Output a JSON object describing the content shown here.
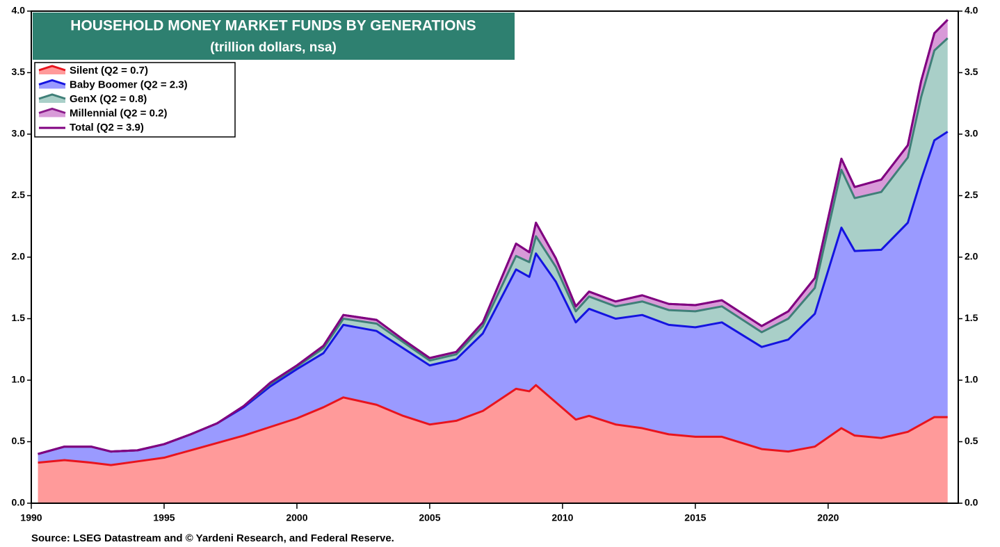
{
  "chart_data": {
    "type": "stacked_area",
    "title": "HOUSEHOLD MONEY MARKET FUNDS BY GENERATIONS",
    "subtitle": "(trillion dollars, nsa)",
    "source": "Source: LSEG Datastream and © Yardeni Research, and Federal Reserve.",
    "x": [
      1990.25,
      1991.25,
      1992.25,
      1993,
      1994,
      1995,
      1996,
      1997,
      1998,
      1999,
      2000,
      2001,
      2001.75,
      2003,
      2004,
      2005,
      2006,
      2007,
      2008.25,
      2008.75,
      2009,
      2009.75,
      2010.5,
      2011,
      2012,
      2013,
      2014,
      2015,
      2016,
      2017.5,
      2018.5,
      2019.5,
      2020.5,
      2021,
      2022,
      2023,
      2023.5,
      2024,
      2024.5
    ],
    "series": [
      {
        "name": "Silent (Q2 = 0.7)",
        "color": "#e8141e",
        "fill": "#ff9a9a",
        "values": [
          0.33,
          0.35,
          0.33,
          0.31,
          0.34,
          0.37,
          0.43,
          0.49,
          0.55,
          0.62,
          0.69,
          0.78,
          0.86,
          0.8,
          0.71,
          0.64,
          0.67,
          0.75,
          0.93,
          0.91,
          0.96,
          0.82,
          0.68,
          0.71,
          0.64,
          0.61,
          0.56,
          0.54,
          0.54,
          0.44,
          0.42,
          0.46,
          0.61,
          0.55,
          0.53,
          0.58,
          0.64,
          0.7,
          0.7
        ]
      },
      {
        "name": "Baby Boomer (Q2 = 2.3)",
        "color": "#1414e0",
        "fill": "#9a9aff",
        "values": [
          0.07,
          0.11,
          0.13,
          0.11,
          0.09,
          0.11,
          0.13,
          0.16,
          0.23,
          0.33,
          0.4,
          0.44,
          0.59,
          0.6,
          0.55,
          0.48,
          0.5,
          0.63,
          0.97,
          0.93,
          1.07,
          0.98,
          0.79,
          0.87,
          0.86,
          0.92,
          0.89,
          0.89,
          0.93,
          0.83,
          0.91,
          1.08,
          1.63,
          1.5,
          1.53,
          1.7,
          1.99,
          2.25,
          2.32
        ]
      },
      {
        "name": "GenX (Q2 = 0.8)",
        "color": "#3f7f78",
        "fill": "#a9cfc8",
        "values": [
          0,
          0,
          0,
          0,
          0,
          0,
          0,
          0,
          0.01,
          0.02,
          0.02,
          0.04,
          0.05,
          0.06,
          0.05,
          0.04,
          0.04,
          0.06,
          0.11,
          0.12,
          0.14,
          0.12,
          0.09,
          0.1,
          0.1,
          0.11,
          0.12,
          0.13,
          0.13,
          0.12,
          0.17,
          0.21,
          0.47,
          0.43,
          0.47,
          0.53,
          0.67,
          0.73,
          0.76
        ]
      },
      {
        "name": "Millennial (Q2 = 0.2)",
        "color": "#8b1c8b",
        "fill": "#d89ad8",
        "values": [
          0,
          0,
          0,
          0,
          0,
          0,
          0,
          0,
          0,
          0.01,
          0.01,
          0.02,
          0.03,
          0.03,
          0.02,
          0.02,
          0.02,
          0.03,
          0.1,
          0.08,
          0.11,
          0.07,
          0.04,
          0.04,
          0.04,
          0.05,
          0.05,
          0.05,
          0.05,
          0.05,
          0.06,
          0.08,
          0.09,
          0.09,
          0.1,
          0.1,
          0.13,
          0.14,
          0.15
        ]
      },
      {
        "name": "Total (Q2 = 3.9)",
        "color": "#800080",
        "stacked": false,
        "values": [
          0.4,
          0.46,
          0.46,
          0.42,
          0.43,
          0.48,
          0.56,
          0.65,
          0.79,
          0.98,
          1.12,
          1.28,
          1.53,
          1.49,
          1.33,
          1.18,
          1.23,
          1.47,
          2.11,
          2.04,
          2.28,
          1.99,
          1.6,
          1.72,
          1.64,
          1.69,
          1.62,
          1.61,
          1.65,
          1.44,
          1.56,
          1.83,
          2.8,
          2.57,
          2.63,
          2.91,
          3.43,
          3.82,
          3.93
        ]
      }
    ],
    "xlim": [
      1990,
      2024.9
    ],
    "xticks": [
      1990,
      1995,
      2000,
      2005,
      2010,
      2015,
      2020
    ],
    "ylim": [
      0,
      4
    ],
    "yticks": [
      {
        "value": 0,
        "label": "0.0"
      },
      {
        "value": 0.5,
        "label": "0.5"
      },
      {
        "value": 1,
        "label": "1.0"
      },
      {
        "value": 1.5,
        "label": "1.5"
      },
      {
        "value": 2,
        "label": "2.0"
      },
      {
        "value": 2.5,
        "label": "2.5"
      },
      {
        "value": 3,
        "label": "3.0"
      },
      {
        "value": 3.5,
        "label": "3.5"
      },
      {
        "value": 4,
        "label": "4.0"
      }
    ],
    "right_axis": true,
    "legend": "upper left"
  }
}
